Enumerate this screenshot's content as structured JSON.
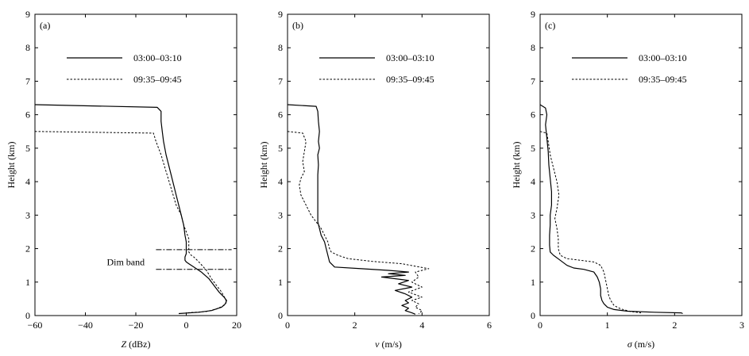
{
  "chart_data": [
    {
      "type": "line",
      "panel_label": "(a)",
      "xlabel_var": "Z",
      "xlabel_unit": " (dBz)",
      "ylabel": "Height (km)",
      "xlim": [
        -60,
        20
      ],
      "ylim": [
        0,
        9
      ],
      "xticks": [
        -60,
        -40,
        -20,
        0,
        20
      ],
      "yticks": [
        0,
        1,
        2,
        3,
        4,
        5,
        6,
        7,
        8,
        9
      ],
      "legend_position": "top-center",
      "annotation": {
        "text": "Dim band",
        "x": -24,
        "y": 1.6,
        "lines_y": [
          1.97,
          1.38
        ],
        "line_x": [
          -12,
          18
        ]
      },
      "series": [
        {
          "name": "03:00–03:10",
          "style": "solid",
          "x": [
            -60,
            -11.5,
            -10,
            -10,
            -9.5,
            -9,
            -8,
            -6,
            -4,
            -3,
            -2,
            -1,
            -0.5,
            0,
            0,
            0,
            -0.5,
            -0.5,
            0,
            1,
            3,
            6,
            9,
            11,
            13,
            15,
            16,
            15.5,
            14,
            10,
            5,
            -3
          ],
          "y": [
            6.3,
            6.22,
            6.1,
            5.8,
            5.5,
            5.2,
            4.8,
            4.2,
            3.6,
            3.3,
            3.0,
            2.7,
            2.4,
            2.2,
            2.0,
            1.85,
            1.75,
            1.65,
            1.6,
            1.55,
            1.45,
            1.3,
            1.1,
            0.9,
            0.7,
            0.55,
            0.45,
            0.35,
            0.25,
            0.15,
            0.1,
            0.06
          ]
        },
        {
          "name": "09:35–09:45",
          "style": "dotted",
          "x": [
            -60,
            -13,
            -12,
            -10,
            -8,
            -6,
            -4,
            -2,
            -1,
            0,
            1,
            1,
            1,
            2,
            3,
            5,
            8,
            10,
            12,
            14,
            15.5,
            16,
            15,
            12,
            8,
            0
          ],
          "y": [
            5.5,
            5.45,
            5.2,
            4.8,
            4.3,
            3.8,
            3.3,
            3.0,
            2.7,
            2.5,
            2.3,
            2.1,
            1.9,
            1.8,
            1.75,
            1.6,
            1.35,
            1.1,
            0.9,
            0.7,
            0.5,
            0.4,
            0.3,
            0.2,
            0.12,
            0.08
          ]
        }
      ]
    },
    {
      "type": "line",
      "panel_label": "(b)",
      "xlabel_var": "v",
      "xlabel_unit": " (m/s)",
      "ylabel": "Height (km)",
      "xlim": [
        0,
        6
      ],
      "ylim": [
        0,
        9
      ],
      "xticks": [
        0,
        2,
        4,
        6
      ],
      "yticks": [
        0,
        1,
        2,
        3,
        4,
        5,
        6,
        7,
        8,
        9
      ],
      "legend_position": "top-center",
      "series": [
        {
          "name": "03:00–03:10",
          "style": "solid",
          "x": [
            0,
            0.85,
            0.9,
            0.92,
            0.95,
            0.92,
            0.95,
            0.9,
            0.92,
            0.9,
            0.9,
            0.9,
            0.9,
            0.9,
            0.9,
            0.95,
            1.0,
            1.1,
            1.15,
            1.2,
            1.25,
            1.4,
            2.2,
            3.0,
            3.6,
            3.0,
            3.5,
            2.8,
            3.6,
            3.3,
            3.7,
            3.2,
            3.5,
            3.7,
            3.5,
            3.6,
            3.4,
            3.6,
            3.5,
            3.7,
            3.8
          ],
          "y": [
            6.3,
            6.25,
            6.1,
            5.8,
            5.5,
            5.2,
            5.0,
            4.8,
            4.5,
            4.2,
            3.9,
            3.6,
            3.3,
            3.0,
            2.8,
            2.6,
            2.4,
            2.2,
            2.0,
            1.8,
            1.6,
            1.45,
            1.4,
            1.35,
            1.3,
            1.25,
            1.2,
            1.15,
            1.05,
            0.95,
            0.85,
            0.75,
            0.65,
            0.55,
            0.45,
            0.38,
            0.3,
            0.22,
            0.15,
            0.08,
            0.04
          ]
        },
        {
          "name": "09:35–09:45",
          "style": "dotted",
          "x": [
            0,
            0.45,
            0.55,
            0.5,
            0.45,
            0.5,
            0.4,
            0.35,
            0.4,
            0.55,
            0.7,
            0.85,
            1.0,
            1.1,
            1.2,
            1.25,
            1.3,
            1.5,
            1.8,
            2.5,
            3.4,
            4.2,
            3.8,
            3.9,
            3.7,
            4.0,
            3.6,
            4.0,
            3.7,
            3.9,
            3.8,
            4.0,
            3.9
          ],
          "y": [
            5.5,
            5.45,
            5.2,
            4.9,
            4.6,
            4.3,
            4.1,
            3.9,
            3.6,
            3.3,
            3.0,
            2.8,
            2.6,
            2.4,
            2.2,
            2.0,
            1.9,
            1.8,
            1.7,
            1.62,
            1.55,
            1.4,
            1.3,
            1.15,
            1.0,
            0.85,
            0.7,
            0.55,
            0.45,
            0.35,
            0.25,
            0.15,
            0.05
          ]
        }
      ]
    },
    {
      "type": "line",
      "panel_label": "(c)",
      "xlabel_var": "σ",
      "xlabel_unit": " (m/s)",
      "ylabel": "Height (km)",
      "xlim": [
        0,
        3
      ],
      "ylim": [
        0,
        9
      ],
      "xticks": [
        0,
        1,
        2,
        3
      ],
      "yticks": [
        0,
        1,
        2,
        3,
        4,
        5,
        6,
        7,
        8,
        9
      ],
      "legend_position": "top-center",
      "series": [
        {
          "name": "03:00–03:10",
          "style": "solid",
          "x": [
            0,
            0.08,
            0.1,
            0.08,
            0.1,
            0.12,
            0.13,
            0.15,
            0.17,
            0.17,
            0.15,
            0.15,
            0.14,
            0.14,
            0.15,
            0.2,
            0.3,
            0.4,
            0.5,
            0.65,
            0.8,
            0.85,
            0.88,
            0.9,
            0.9,
            0.92,
            0.95,
            1.0,
            1.1,
            1.3,
            1.7,
            2.1,
            2.12
          ],
          "y": [
            6.3,
            6.2,
            6.0,
            5.7,
            5.3,
            4.9,
            4.5,
            4.1,
            3.7,
            3.3,
            3.0,
            2.7,
            2.4,
            2.1,
            1.9,
            1.8,
            1.65,
            1.5,
            1.42,
            1.38,
            1.3,
            1.15,
            1.0,
            0.8,
            0.6,
            0.45,
            0.35,
            0.25,
            0.18,
            0.13,
            0.1,
            0.08,
            0.06
          ]
        },
        {
          "name": "09:35–09:45",
          "style": "dotted",
          "x": [
            0,
            0.1,
            0.12,
            0.15,
            0.2,
            0.25,
            0.28,
            0.25,
            0.22,
            0.25,
            0.27,
            0.27,
            0.3,
            0.4,
            0.6,
            0.8,
            0.9,
            0.95,
            0.97,
            1.0,
            1.02,
            1.05,
            1.1,
            1.2,
            1.35,
            1.5
          ],
          "y": [
            5.5,
            5.45,
            5.2,
            4.8,
            4.4,
            4.0,
            3.6,
            3.2,
            2.9,
            2.6,
            2.3,
            2.0,
            1.8,
            1.7,
            1.65,
            1.6,
            1.5,
            1.3,
            1.1,
            0.8,
            0.6,
            0.45,
            0.3,
            0.2,
            0.12,
            0.08
          ]
        }
      ]
    }
  ]
}
